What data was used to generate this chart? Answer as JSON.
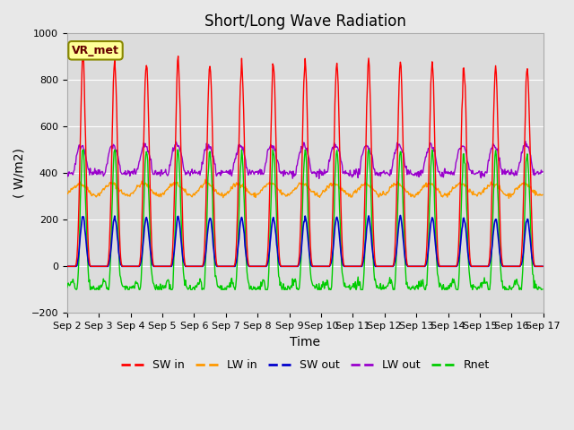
{
  "title": "Short/Long Wave Radiation",
  "xlabel": "Time",
  "ylabel": "( W/m2)",
  "ylim": [
    -200,
    1000
  ],
  "yticks": [
    -200,
    0,
    200,
    400,
    600,
    800,
    1000
  ],
  "n_days": 15,
  "dt_hours": 0.5,
  "background_color": "#e8e8e8",
  "plot_bg_color": "#dcdcdc",
  "grid_color": "#c8c8c8",
  "colors": {
    "SW_in": "#ff0000",
    "LW_in": "#ff9900",
    "SW_out": "#0000cc",
    "LW_out": "#9900cc",
    "Rnet": "#00cc00"
  },
  "legend_labels": [
    "SW in",
    "LW in",
    "SW out",
    "LW out",
    "Rnet"
  ],
  "annotation_text": "VR_met",
  "annotation_bbox_facecolor": "#ffff99",
  "annotation_bbox_edgecolor": "#888800",
  "tick_label_fontsize": 8,
  "axis_label_fontsize": 10,
  "title_fontsize": 12
}
